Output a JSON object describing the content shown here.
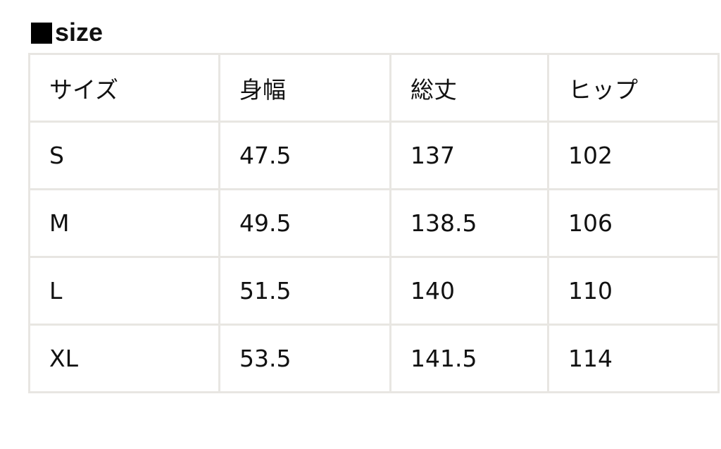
{
  "title": "size",
  "table": {
    "headers": [
      "サイズ",
      "身幅",
      "総丈",
      "ヒップ"
    ],
    "rows": [
      [
        "S",
        "47.5",
        "137",
        "102"
      ],
      [
        "M",
        "49.5",
        "138.5",
        "106"
      ],
      [
        "L",
        "51.5",
        "140",
        "110"
      ],
      [
        "XL",
        "53.5",
        "141.5",
        "114"
      ]
    ]
  }
}
